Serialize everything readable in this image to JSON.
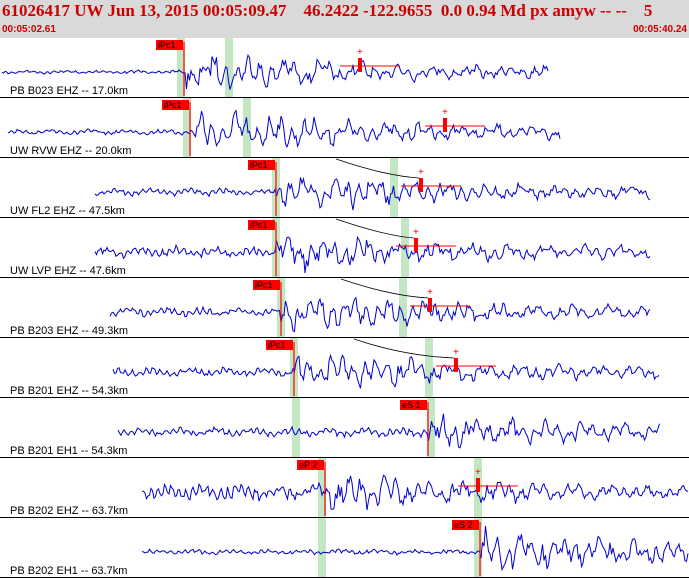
{
  "header": {
    "title": "61026417 UW Jun 13, 2015 00:05:09.47    46.2422 -122.9655  0.0 0.94 Md px amyw -- --    5",
    "time_start": "00:05:02.61",
    "time_end": "00:05:40.24"
  },
  "colors": {
    "header_bg": "#d9d9d9",
    "header_text": "#cc0000",
    "waveform": "#0000cc",
    "pick_marker": "#ff0000",
    "pick_window": "#c3e6c3",
    "separator": "#000000",
    "travel_curve": "#000000"
  },
  "traces": [
    {
      "label": "PB B023 EHZ -- 17.0km",
      "pick_label": "iPc1",
      "waveform_window_s": [
        -4.0,
        8.6
      ],
      "pick_rel_s": 0.2,
      "has_s_marker": true
    },
    {
      "label": "UW RVW EHZ -- 20.0km",
      "pick_label": "iPc1",
      "waveform_window_s": [
        -4.5,
        7.5
      ],
      "pick_rel_s": 0.3,
      "has_s_marker": true
    },
    {
      "label": "UW FL2 EHZ -- 47.5km",
      "pick_label": "iPc1",
      "waveform_window_s": [
        -4.5,
        9.0
      ],
      "pick_rel_s": 0.0,
      "has_s_marker": true
    },
    {
      "label": "UW LVP EHZ -- 47.6km",
      "pick_label": "iPc1",
      "waveform_window_s": [
        -4.5,
        9.0
      ],
      "pick_rel_s": 0.0,
      "has_s_marker": true
    },
    {
      "label": "PB B203 EHZ -- 49.3km",
      "pick_label": "iPc1",
      "waveform_window_s": [
        -4.5,
        9.0
      ],
      "pick_rel_s": 0.0,
      "has_s_marker": true
    },
    {
      "label": "PB B201 EHZ -- 54.3km",
      "pick_label": "iPc1",
      "waveform_window_s": [
        -4.5,
        9.0
      ],
      "pick_rel_s": 0.0,
      "has_s_marker": true
    },
    {
      "label": "PB B201 EH1 -- 54.3km",
      "pick_label": "eS 1",
      "waveform_window_s": [
        -4.5,
        9.0
      ],
      "pick_rel_s": 0.0,
      "has_s_marker": false
    },
    {
      "label": "PB B202 EHZ -- 63.7km",
      "pick_label": "eP 2",
      "waveform_window_s": [
        -4.5,
        9.0
      ],
      "pick_rel_s": 0.0,
      "has_s_marker": true
    },
    {
      "label": "PB B202 EH1 -- 63.7km",
      "pick_label": "eS 2",
      "waveform_window_s": [
        -4.5,
        9.0
      ],
      "pick_rel_s": 0.0,
      "has_s_marker": false
    }
  ]
}
